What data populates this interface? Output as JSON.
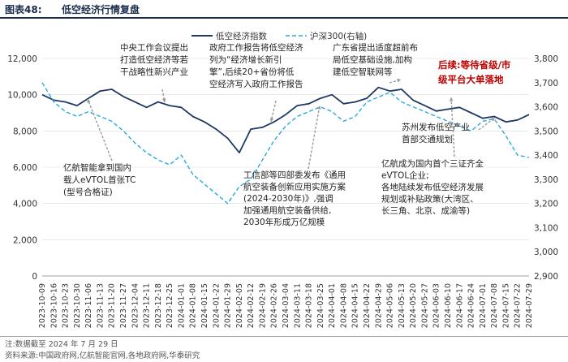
{
  "header": {
    "figure_label": "图表48:",
    "title": "低空经济行情复盘"
  },
  "footer": {
    "note": "注:数据截至 2024 年 7 月 29 日",
    "source": "资料来源:中国政府网,亿航智能官网,各地政府网,华泰研究"
  },
  "chart_data": {
    "type": "line",
    "title": "低空经济行情复盘",
    "legend": [
      "低空经济指数",
      "沪深300(右轴)"
    ],
    "legend_position": "top-center",
    "left_axis": {
      "min": 0,
      "max": 12000,
      "ticks": [
        "0",
        "2,000",
        "4,000",
        "6,000",
        "8,000",
        "10,000",
        "12,000"
      ]
    },
    "right_axis": {
      "min": 2900,
      "max": 3800,
      "ticks": [
        "2,900",
        "3,000",
        "3,100",
        "3,200",
        "3,300",
        "3,400",
        "3,500",
        "3,600",
        "3,700",
        "3,800"
      ]
    },
    "x_ticks": [
      "2023-10-09",
      "2023-10-16",
      "2023-10-23",
      "2023-10-30",
      "2023-11-06",
      "2023-11-13",
      "2023-11-20",
      "2023-11-27",
      "2023-12-04",
      "2023-12-11",
      "2023-12-18",
      "2023-12-25",
      "2024-01-01",
      "2024-01-08",
      "2024-01-15",
      "2024-01-22",
      "2024-01-29",
      "2024-02-05",
      "2024-02-12",
      "2024-02-19",
      "2024-02-26",
      "2024-03-04",
      "2024-03-11",
      "2024-03-18",
      "2024-03-25",
      "2024-04-01",
      "2024-04-08",
      "2024-04-15",
      "2024-04-22",
      "2024-04-29",
      "2024-05-06",
      "2024-05-13",
      "2024-05-20",
      "2024-05-27",
      "2024-06-03",
      "2024-06-10",
      "2024-06-17",
      "2024-06-24",
      "2024-07-01",
      "2024-07-08",
      "2024-07-15",
      "2024-07-22",
      "2024-07-29"
    ],
    "series": [
      {
        "name": "低空经济指数",
        "axis": "left",
        "color": "#1f3864",
        "dash": false,
        "values": [
          10000,
          9700,
          9600,
          9400,
          9800,
          10200,
          10300,
          9900,
          9600,
          9300,
          9600,
          9400,
          9300,
          8800,
          8500,
          8100,
          7600,
          6800,
          8100,
          8200,
          8500,
          8900,
          9400,
          9500,
          9800,
          10000,
          9500,
          9600,
          9800,
          10400,
          10200,
          10300,
          9700,
          9400,
          9100,
          9200,
          9300,
          9000,
          8700,
          8800,
          8500,
          8600,
          8900
        ]
      },
      {
        "name": "沪深300(右轴)",
        "axis": "right",
        "color": "#29a8e0",
        "dash": true,
        "values": [
          3700,
          3620,
          3580,
          3560,
          3580,
          3560,
          3540,
          3500,
          3450,
          3410,
          3380,
          3360,
          3400,
          3320,
          3280,
          3240,
          3200,
          3270,
          3300,
          3380,
          3460,
          3520,
          3560,
          3580,
          3600,
          3580,
          3540,
          3560,
          3620,
          3640,
          3660,
          3620,
          3600,
          3580,
          3560,
          3540,
          3520,
          3500,
          3540,
          3550,
          3480,
          3400,
          3390
        ]
      }
    ],
    "annotations": [
      {
        "text": [
          "中央工作会议提出",
          "打造低空经济等若",
          "干战略性新兴产业"
        ],
        "color": "#222222"
      },
      {
        "text": [
          "政府工作报告将低空经济",
          "列为“经济增长新引",
          "擎”,后续20+省份将低",
          "空经济写入政府工作报告"
        ],
        "color": "#222222"
      },
      {
        "text": [
          "广东省提出适度超前布",
          "局低空基础设施,加构",
          "建低空智联网等"
        ],
        "color": "#222222"
      },
      {
        "text": [
          "后续:等待省级/市",
          "级平台大单落地"
        ],
        "color": "#c00000"
      },
      {
        "text": [
          "苏州发布低空产业",
          "首部交通规划"
        ],
        "color": "#222222"
      },
      {
        "text": [
          "亿航智能拿到国内",
          "载人eVTOL首张TC",
          "(型号合格证)"
        ],
        "color": "#222222"
      },
      {
        "text": [
          "工信部等四部委发布《通用",
          "航空装备创新应用实施方案",
          "(2024-2030年)》,强调",
          "加强通用航空装备供给,",
          "2030年形成万亿规模"
        ],
        "color": "#222222"
      },
      {
        "text": [
          "亿航成为国内首个三证齐全",
          "eVTOL企业;",
          "各地陆续发布低空经济发展",
          "规划或补贴政策(大湾区、",
          "长三角、北京、成渝等)"
        ],
        "color": "#222222"
      }
    ]
  }
}
